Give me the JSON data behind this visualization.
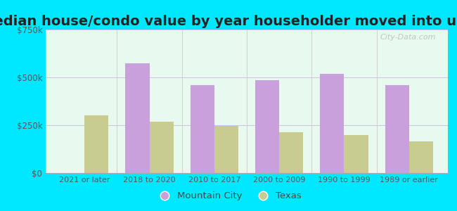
{
  "title": "Median house/condo value by year householder moved into unit",
  "categories": [
    "2021 or later",
    "2018 to 2020",
    "2010 to 2017",
    "2000 to 2009",
    "1990 to 1999",
    "1989 or earlier"
  ],
  "mountain_city": [
    0,
    575000,
    460000,
    485000,
    520000,
    460000
  ],
  "texas": [
    300000,
    270000,
    248000,
    215000,
    197000,
    165000
  ],
  "mountain_city_color": "#c9a0dc",
  "texas_color": "#c8cc90",
  "background_color": "#e8faf0",
  "outer_background": "#00e8ff",
  "ylim": [
    0,
    750000
  ],
  "ytick_vals": [
    0,
    250000,
    500000,
    750000
  ],
  "ytick_labels": [
    "$0",
    "$250k",
    "$500k",
    "$750k"
  ],
  "legend_mountain_city": "Mountain City",
  "legend_texas": "Texas",
  "title_fontsize": 14,
  "bar_width": 0.37,
  "grid_color": "#d0c0e0",
  "watermark": "City-Data.com"
}
